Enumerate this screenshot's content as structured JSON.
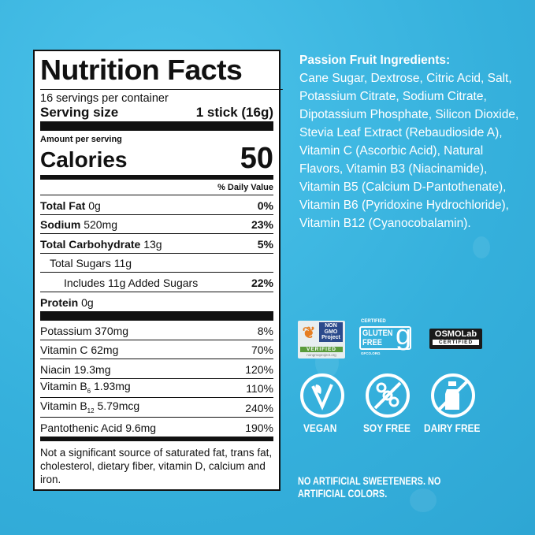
{
  "label": {
    "title": "Nutrition Facts",
    "servings": "16 servings per container",
    "serving_size_label": "Serving size",
    "serving_size_value": "1 stick (16g)",
    "amount_per_serving": "Amount per serving",
    "calories_label": "Calories",
    "calories_value": "50",
    "dv_header": "% Daily Value",
    "macros": [
      {
        "name": "Total Fat",
        "amount": "0g",
        "dv": "0%"
      },
      {
        "name": "Sodium",
        "amount": "520mg",
        "dv": "23%"
      },
      {
        "name": "Total Carbohydrate",
        "amount": "13g",
        "dv": "5%"
      },
      {
        "name": "Total Sugars 11g",
        "amount": "",
        "dv": ""
      },
      {
        "name": "Includes 11g Added Sugars",
        "amount": "",
        "dv": "22%"
      },
      {
        "name": "Protein",
        "amount": "0g",
        "dv": ""
      }
    ],
    "micros": [
      {
        "name": "Potassium",
        "amount": "370mg",
        "dv": "8%"
      },
      {
        "name": "Vitamin C",
        "amount": "62mg",
        "dv": "70%"
      },
      {
        "name": "Niacin",
        "amount": "19.3mg",
        "dv": "120%"
      },
      {
        "name": "Vitamin B",
        "sub": "6",
        "amount": "1.93mg",
        "dv": "110%"
      },
      {
        "name": "Vitamin B",
        "sub": "12",
        "amount": "5.79mcg",
        "dv": "240%"
      },
      {
        "name": "Pantothenic Acid",
        "amount": "9.6mg",
        "dv": "190%"
      }
    ],
    "footnote": "Not a significant source of saturated fat, trans fat, cholesterol, dietary fiber, vitamin D, calcium and iron."
  },
  "ingredients": {
    "heading": "Passion Fruit Ingredients:",
    "text": "Cane Sugar, Dextrose, Citric Acid, Salt, Potassium Citrate, Sodium Citrate, Dipotassium Phosphate, Silicon Dioxide, Stevia Leaf Extract (Rebaudioside A), Vitamin C (Ascorbic Acid), Natural Flavors, Vitamin B3 (Niacinamide), Vitamin B5 (Calcium D-Pantothenate), Vitamin B6 (Pyridoxine Hydrochloride), Vitamin B12 (Cyanocobalamin)."
  },
  "certifications": {
    "nongmo": {
      "line1": "NON",
      "line2": "GMO",
      "line3": "Project",
      "verified": "VERIFIED",
      "url": "nongmoproject.org"
    },
    "gluten": {
      "certified": "CERTIFIED",
      "line1": "GLUTEN",
      "line2": "FREE",
      "url": "GFCO.ORG"
    },
    "osmo": {
      "name": "OSMOLab",
      "certified": "CERTIFIED"
    }
  },
  "claims": [
    {
      "label": "VEGAN",
      "icon": "leaf-v-icon"
    },
    {
      "label": "SOY FREE",
      "icon": "no-soy-icon"
    },
    {
      "label": "DAIRY FREE",
      "icon": "no-milk-icon"
    }
  ],
  "tagline": "NO ARTIFICIAL SWEETENERS. NO ARTIFICIAL COLORS.",
  "colors": {
    "background": "#35b0dc",
    "text": "#ffffff",
    "label_ink": "#111111"
  }
}
